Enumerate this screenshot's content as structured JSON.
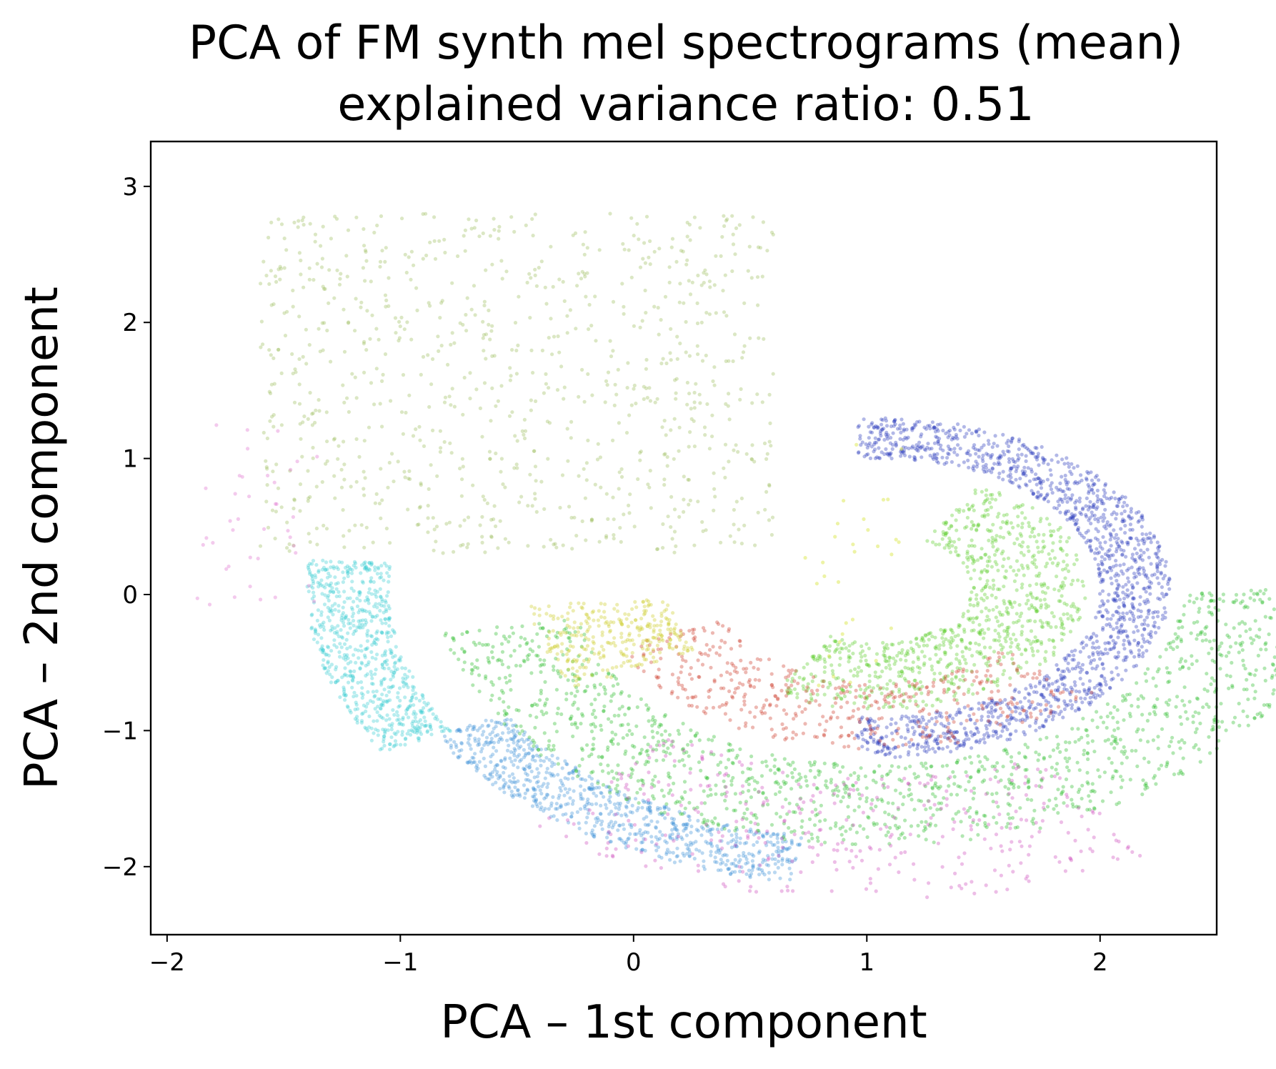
{
  "chart_data": {
    "type": "scatter",
    "title": "PCA of FM synth mel spectrograms (mean)",
    "subtitle": "explained variance ratio: 0.51",
    "xlabel": "PCA – 1st component",
    "ylabel": "PCA – 2nd component",
    "xlim": [
      -2.07,
      2.5
    ],
    "ylim": [
      -2.5,
      3.33
    ],
    "xticks": [
      -2,
      -1,
      0,
      1,
      2
    ],
    "xtick_labels": [
      "−2",
      "−1",
      "0",
      "1",
      "2"
    ],
    "yticks": [
      -2,
      -1,
      0,
      1,
      2,
      3
    ],
    "ytick_labels": [
      "−2",
      "−1",
      "0",
      "1",
      "2",
      "3"
    ],
    "grid": false,
    "legend": "none",
    "spiral_center": [
      1.05,
      0.05
    ],
    "series": [
      {
        "name": "outer-arc-blue",
        "color": "#2233bb",
        "angle_range_deg": [
          -95,
          95
        ],
        "radius": [
          0.95,
          1.25
        ],
        "count": 1500
      },
      {
        "name": "outer-arc-lightblue",
        "color": "#3a8fd8",
        "angle_range_deg": [
          -150,
          -100
        ],
        "radius": [
          1.85,
          2.2
        ],
        "count": 800
      },
      {
        "name": "middle-arc-cyan",
        "color": "#33ccd0",
        "angle_range_deg": [
          -185,
          -150
        ],
        "radius": [
          2.1,
          2.45
        ],
        "count": 700
      },
      {
        "name": "middle-arc-green",
        "color": "#22bb22",
        "angle_range_deg": [
          -170,
          0
        ],
        "radius": [
          1.3,
          1.9
        ],
        "count": 1400
      },
      {
        "name": "inner-arc-green",
        "color": "#55cc22",
        "angle_range_deg": [
          -120,
          60
        ],
        "radius": [
          0.4,
          0.9
        ],
        "count": 900
      },
      {
        "name": "red-band",
        "color": "#cc3322",
        "angle_range_deg": [
          -160,
          -40
        ],
        "radius": [
          0.7,
          1.2
        ],
        "count": 450
      },
      {
        "name": "yellow-band",
        "color": "#cccc22",
        "angle_range_deg": [
          -175,
          -150
        ],
        "radius": [
          0.9,
          1.5
        ],
        "count": 300
      },
      {
        "name": "magenta-scatter",
        "color": "#cc44bb",
        "angle_range_deg": [
          -130,
          -60
        ],
        "radius": [
          1.4,
          2.3
        ],
        "count": 350
      },
      {
        "name": "diffuse-upper-left",
        "color": "#99bb55",
        "x_range": [
          -1.6,
          0.6
        ],
        "y_range": [
          0.3,
          2.8
        ],
        "count": 900
      },
      {
        "name": "pink-outliers",
        "color": "#dd66cc",
        "x_range": [
          -1.9,
          -1.35
        ],
        "y_range": [
          -0.1,
          1.3
        ],
        "count": 40
      },
      {
        "name": "yellow-trajectory",
        "color": "#ccdd00",
        "x_range": [
          0.72,
          1.15
        ],
        "y_range": [
          -0.7,
          1.2
        ],
        "count": 30
      }
    ]
  }
}
